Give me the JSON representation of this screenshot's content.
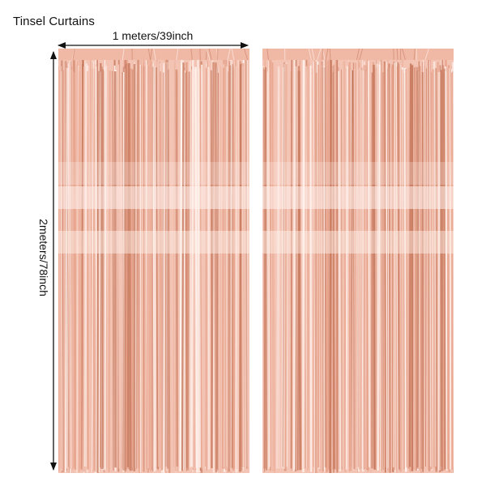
{
  "title": "Tinsel Curtains",
  "dimensions": {
    "width_label": "1 meters/39inch",
    "height_label": "2meters/78inch"
  },
  "product": {
    "color_name": "rose gold",
    "panel_count": 2,
    "colors": {
      "base": "#f3c3b3",
      "mid": "#e8a58e",
      "dark": "#c97d62",
      "shine": "#fff3ee",
      "header": "#f0b9a6"
    }
  }
}
